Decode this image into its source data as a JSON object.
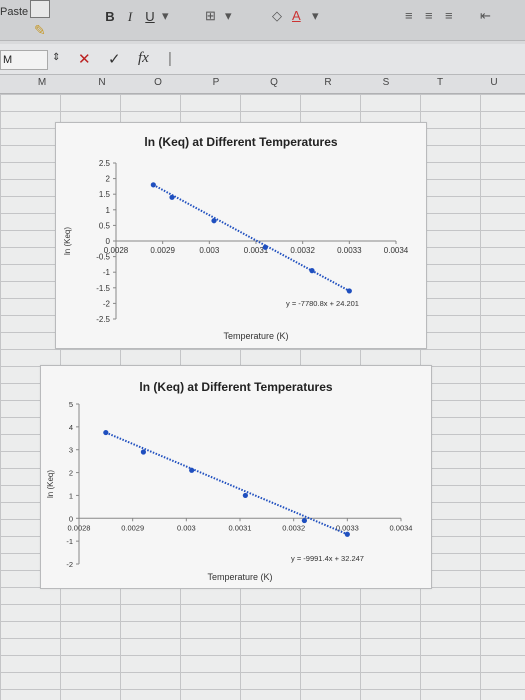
{
  "toolbar": {
    "paste_label": "Paste",
    "bold_label": "B",
    "italic_label": "I",
    "underline_label": "U"
  },
  "formula_bar": {
    "name_box": "M",
    "cancel_symbol": "✕",
    "enter_symbol": "✓",
    "fx_label": "fx"
  },
  "columns": [
    "M",
    "N",
    "O",
    "P",
    "Q",
    "R",
    "S",
    "T",
    "U"
  ],
  "colors": {
    "series": "#1f4fbf",
    "trendline": "#1f4fbf"
  },
  "chart_data": [
    {
      "type": "scatter",
      "title": "ln (Keq) at Different Temperatures",
      "xlabel": "Temperature (K)",
      "ylabel": "ln (Keq)",
      "xlim": [
        0.0028,
        0.0034
      ],
      "ylim": [
        -2.5,
        2.5
      ],
      "x_ticks": [
        "0.0028",
        "0.0029",
        "0.003",
        "0.0031",
        "0.0032",
        "0.0033",
        "0.0034"
      ],
      "y_ticks": [
        "2.5",
        "2",
        "1.5",
        "1",
        "0.5",
        "0",
        "-0.5",
        "-1",
        "-1.5",
        "-2",
        "-2.5"
      ],
      "series": [
        {
          "x": [
            0.00288,
            0.00292,
            0.00301,
            0.00312,
            0.00322,
            0.0033
          ],
          "y": [
            1.8,
            1.4,
            0.65,
            -0.2,
            -0.95,
            -1.6
          ]
        }
      ],
      "trendline": {
        "type": "linear",
        "equation": "y = -7780.8x + 24.201"
      },
      "grid": false,
      "legend": "none"
    },
    {
      "type": "scatter",
      "title": "ln (Keq) at Different Temperatures",
      "xlabel": "Temperature (K)",
      "ylabel": "ln (Keq)",
      "xlim": [
        0.0028,
        0.0034
      ],
      "ylim": [
        -2,
        5
      ],
      "x_ticks": [
        "0.0028",
        "0.0029",
        "0.003",
        "0.0031",
        "0.0032",
        "0.0033",
        "0.0034"
      ],
      "y_ticks": [
        "5",
        "4",
        "3",
        "2",
        "1",
        "0",
        "-1",
        "-2"
      ],
      "series": [
        {
          "x": [
            0.00285,
            0.00292,
            0.00301,
            0.00311,
            0.00322,
            0.0033
          ],
          "y": [
            3.75,
            2.9,
            2.1,
            1.0,
            -0.1,
            -0.7
          ]
        }
      ],
      "trendline": {
        "type": "linear",
        "equation": "y = -9991.4x + 32.247"
      },
      "grid": false,
      "legend": "none"
    }
  ]
}
